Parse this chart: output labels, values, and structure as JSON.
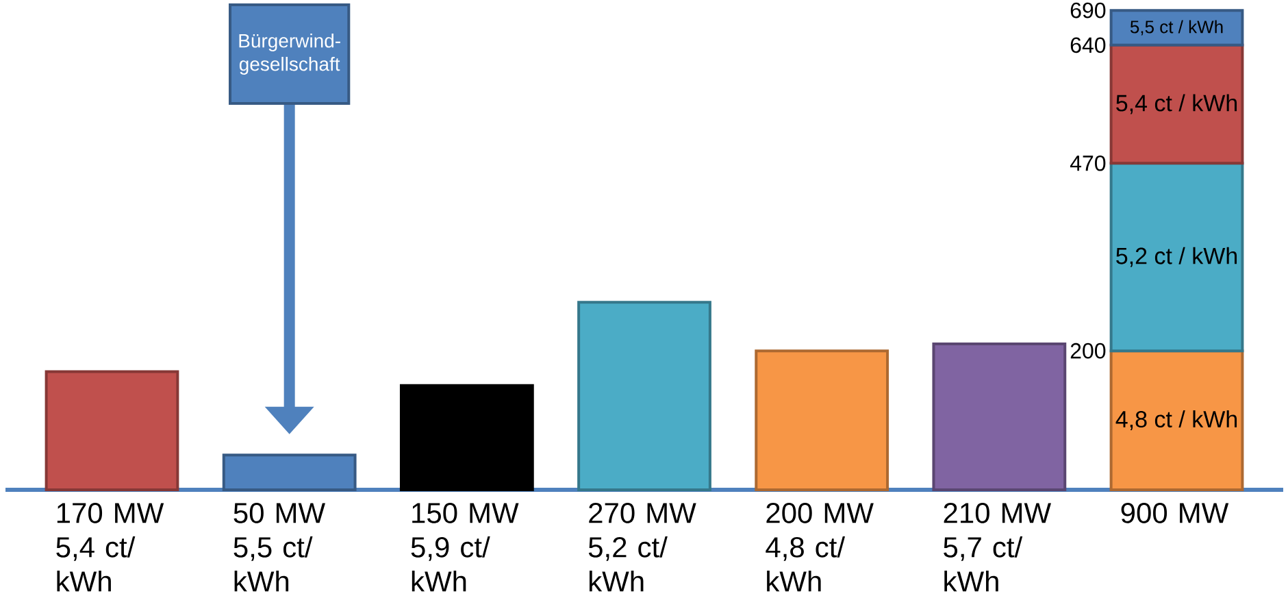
{
  "chart_data": {
    "type": "bar",
    "stacked": true,
    "categories": [
      "170 MW 5,4 ct/ kWh",
      "50 MW 5,5 ct/ kWh",
      "150 MW 5,9 ct/ kWh",
      "270 MW 5,2 ct/ kWh",
      "200 MW 4,8 ct/ kWh",
      "210 MW 5,7 ct/ kWh",
      "900 MW"
    ],
    "series": [
      {
        "colors": [
          "#c0504d",
          "#4f81bd",
          "#000000",
          "#4bacc6",
          "#f79646",
          "#8064a2",
          "#f79646"
        ],
        "values": [
          170,
          50,
          150,
          270,
          200,
          210,
          200
        ]
      },
      {
        "color": "#4bacc6",
        "values": [
          null,
          null,
          null,
          null,
          null,
          null,
          270
        ]
      },
      {
        "color": "#c0504d",
        "values": [
          null,
          null,
          null,
          null,
          null,
          null,
          170
        ]
      },
      {
        "color": "#4f81bd",
        "values": [
          null,
          null,
          null,
          null,
          null,
          null,
          50
        ]
      }
    ],
    "ylim": [
      0,
      700
    ],
    "yticks": [
      200,
      470,
      640,
      690
    ],
    "annotations": [
      "Bürgerwind-gesellschaft",
      "4,8 ct / kWh",
      "5,2 ct / kWh",
      "5,4 ct / kWh",
      "5,5 ct / kWh"
    ]
  }
}
